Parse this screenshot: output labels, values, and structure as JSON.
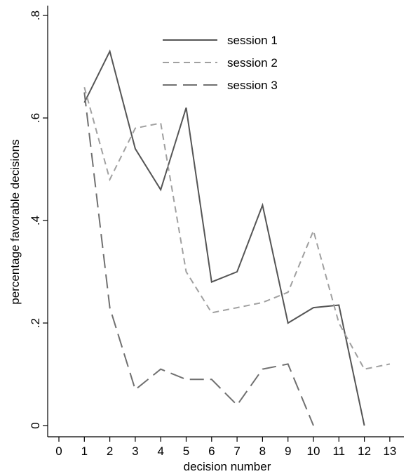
{
  "chart_data": {
    "type": "line",
    "title": "",
    "xlabel": "decision number",
    "ylabel": "percentage favorable decisions",
    "xlim": [
      0,
      13
    ],
    "ylim": [
      0,
      0.8
    ],
    "xticks": [
      0,
      1,
      2,
      3,
      4,
      5,
      6,
      7,
      8,
      9,
      10,
      11,
      12,
      13
    ],
    "xtick_labels": [
      "0",
      "1",
      "2",
      "3",
      "4",
      "5",
      "6",
      "7",
      "8",
      "9",
      "10",
      "11",
      "12",
      "13"
    ],
    "yticks": [
      0,
      0.2,
      0.4,
      0.6,
      0.8
    ],
    "ytick_labels": [
      "0",
      ".2",
      ".4",
      ".6",
      ".8"
    ],
    "grid": false,
    "legend_position": "top-center",
    "series": [
      {
        "name": "session 1",
        "style": "solid",
        "color": "#555555",
        "x": [
          1,
          2,
          3,
          4,
          5,
          6,
          7,
          8,
          9,
          10,
          11,
          12
        ],
        "values": [
          0.63,
          0.73,
          0.54,
          0.46,
          0.62,
          0.28,
          0.3,
          0.43,
          0.2,
          0.23,
          0.235,
          0.0
        ]
      },
      {
        "name": "session 2",
        "style": "short-dash",
        "color": "#a0a0a0",
        "x": [
          1,
          2,
          3,
          4,
          5,
          6,
          7,
          8,
          9,
          10,
          11,
          12,
          13
        ],
        "values": [
          0.66,
          0.48,
          0.58,
          0.59,
          0.3,
          0.22,
          0.23,
          0.24,
          0.26,
          0.38,
          0.2,
          0.11,
          0.12
        ]
      },
      {
        "name": "session 3",
        "style": "long-dash",
        "color": "#707070",
        "x": [
          1,
          2,
          3,
          4,
          5,
          6,
          7,
          8,
          9,
          10
        ],
        "values": [
          0.65,
          0.23,
          0.07,
          0.11,
          0.09,
          0.09,
          0.04,
          0.11,
          0.12,
          0.0
        ]
      }
    ]
  }
}
